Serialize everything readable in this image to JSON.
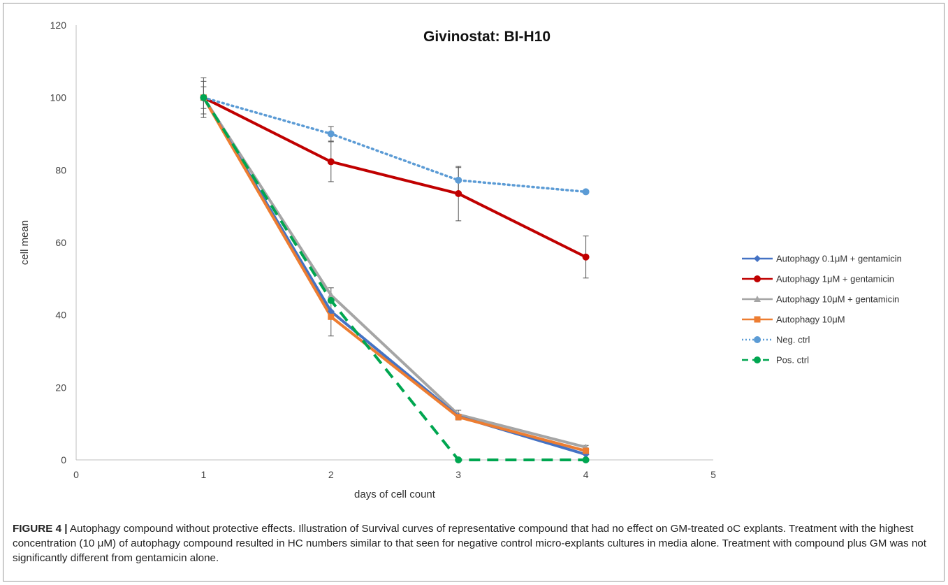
{
  "chart_data": {
    "type": "line",
    "title": "Givinostat: BI-H10",
    "xlabel": "days of cell count",
    "ylabel": "cell mean",
    "xlim": [
      0,
      5
    ],
    "ylim": [
      0,
      120
    ],
    "x_ticks": [
      "0",
      "1",
      "2",
      "3",
      "4",
      "5"
    ],
    "y_ticks": [
      "0",
      "20",
      "40",
      "60",
      "80",
      "100",
      "120"
    ],
    "grid": false,
    "legend_position": "right",
    "x": [
      1,
      2,
      3,
      4
    ],
    "series": [
      {
        "name": "Autophagy 0.1μM + gentamicin",
        "values": [
          100,
          41,
          12,
          1.5
        ],
        "color": "#4472c4",
        "dash": "solid",
        "marker": "diamond",
        "error": [
          0,
          0,
          0,
          0
        ]
      },
      {
        "name": "Autophagy 1μM + gentamicin",
        "values": [
          100,
          82.3,
          73.5,
          56
        ],
        "color": "#c00000",
        "dash": "solid",
        "marker": "circle",
        "error": [
          0,
          5.5,
          7.5,
          5.8
        ]
      },
      {
        "name": "Autophagy 10μM + gentamicin",
        "values": [
          100,
          45.5,
          12.5,
          3.5
        ],
        "color": "#a5a5a5",
        "dash": "solid",
        "marker": "triangle",
        "error": [
          5.5,
          2,
          1.2,
          0.5
        ]
      },
      {
        "name": "Autophagy 10μM",
        "values": [
          100,
          39.5,
          11.8,
          2.5
        ],
        "color": "#ed7d31",
        "dash": "solid",
        "marker": "square",
        "error": [
          4.5,
          5.3,
          0.8,
          0.5
        ]
      },
      {
        "name": "Neg. ctrl",
        "values": [
          100,
          90,
          77.2,
          74
        ],
        "color": "#5b9bd5",
        "dash": "dotted",
        "marker": "circle",
        "error": [
          3,
          2,
          3.5,
          0
        ]
      },
      {
        "name": "Pos. ctrl",
        "values": [
          100,
          44,
          0,
          0
        ],
        "color": "#00a650",
        "dash": "dashed",
        "marker": "circle",
        "error": [
          0,
          0,
          0,
          0
        ]
      }
    ]
  },
  "caption": {
    "label": "FIGURE 4 |",
    "text": " Autophagy compound without protective effects. Illustration of Survival curves of representative compound that had no effect on GM-treated oC explants. Treatment with the highest concentration (10 μM) of autophagy compound resulted in HC numbers similar to that seen for negative control micro-explants cultures in media alone. Treatment with compound plus GM was not significantly different from gentamicin alone."
  }
}
